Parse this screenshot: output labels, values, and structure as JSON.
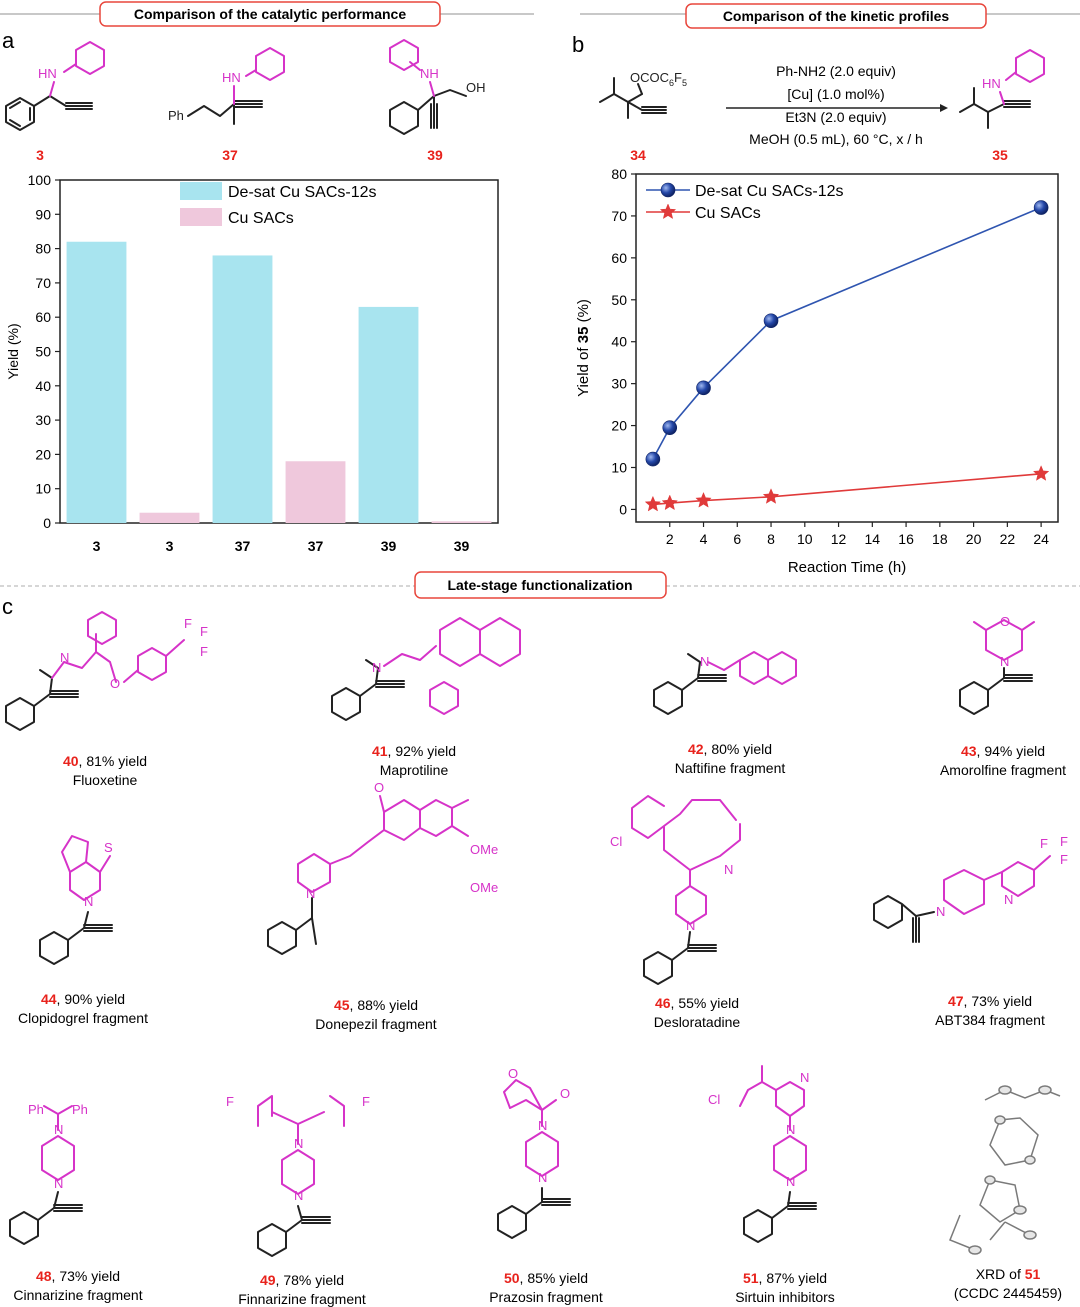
{
  "panel_a": {
    "letter": "a",
    "header": "Comparison of the catalytic performance",
    "compounds": [
      "3",
      "37",
      "39"
    ],
    "ph_label": "Ph",
    "hn_label": "HN",
    "nh_label": "NH",
    "oh_label": "OH"
  },
  "panel_b": {
    "letter": "b",
    "header": "Comparison of the kinetic profiles",
    "reactant_group": "OCOC6F5",
    "reactant_id": "34",
    "product_id": "35",
    "conditions": [
      "Ph-NH2 (2.0 equiv)",
      "[Cu] (1.0 mol%)",
      "Et3N (2.0 equiv)",
      "MeOH (0.5 mL), 60 °C, x / h"
    ]
  },
  "panel_c": {
    "letter": "c",
    "header": "Late-stage functionalization",
    "compounds": [
      {
        "id": "40",
        "yield": ", 81% yield",
        "name": "Fluoxetine"
      },
      {
        "id": "41",
        "yield": ", 92% yield",
        "name": "Maprotiline"
      },
      {
        "id": "42",
        "yield": ", 80% yield",
        "name": "Naftifine fragment"
      },
      {
        "id": "43",
        "yield": ", 94% yield",
        "name": "Amorolfine fragment"
      },
      {
        "id": "44",
        "yield": ", 90% yield",
        "name": "Clopidogrel fragment"
      },
      {
        "id": "45",
        "yield": ", 88% yield",
        "name": "Donepezil fragment"
      },
      {
        "id": "46",
        "yield": ", 55% yield",
        "name": "Desloratadine"
      },
      {
        "id": "47",
        "yield": ", 73% yield",
        "name": "ABT384 fragment"
      },
      {
        "id": "48",
        "yield": ", 73% yield",
        "name": "Cinnarizine fragment"
      },
      {
        "id": "49",
        "yield": ", 78% yield",
        "name": "Finnarizine fragment"
      },
      {
        "id": "50",
        "yield": ", 85% yield",
        "name": "Prazosin fragment"
      },
      {
        "id": "51",
        "yield": ", 87% yield",
        "name": "Sirtuin inhibitors"
      }
    ],
    "xrd": {
      "prefix": "XRD of ",
      "id": "51",
      "ccdc": "(CCDC 2445459)"
    },
    "atom_labels": {
      "F": "F",
      "O": "O",
      "N": "N",
      "S": "S",
      "Cl": "Cl",
      "OMe": "OMe",
      "Ph": "Ph"
    }
  },
  "chart_data": [
    {
      "type": "bar",
      "title": "",
      "xlabel": "",
      "ylabel": "Yield (%)",
      "ylim": [
        0,
        100
      ],
      "yticks": [
        0,
        10,
        20,
        30,
        40,
        50,
        60,
        70,
        80,
        90,
        100
      ],
      "categories": [
        "3",
        "3",
        "37",
        "37",
        "39",
        "39"
      ],
      "series": [
        {
          "name": "De-sat Cu SACs-12s",
          "color": "#a8e4ef",
          "values": [
            82,
            null,
            78,
            null,
            63,
            null
          ]
        },
        {
          "name": "Cu SACs",
          "color": "#efc8dc",
          "values": [
            null,
            3,
            null,
            18,
            null,
            0.5
          ]
        }
      ],
      "legend": "top-center"
    },
    {
      "type": "line",
      "title": "",
      "xlabel": "Reaction Time (h)",
      "ylabel": "Yield of 35 (%)",
      "xlim": [
        0,
        25
      ],
      "ylim": [
        -3,
        80
      ],
      "xticks": [
        2,
        4,
        6,
        8,
        10,
        12,
        14,
        16,
        18,
        20,
        22,
        24
      ],
      "yticks": [
        0,
        10,
        20,
        30,
        40,
        50,
        60,
        70,
        80
      ],
      "series": [
        {
          "name": "De-sat Cu SACs-12s",
          "color": "#2f55b0",
          "marker": "circle",
          "x": [
            1,
            2,
            4,
            8,
            24
          ],
          "y": [
            12,
            19.5,
            29,
            45,
            72
          ]
        },
        {
          "name": "Cu SACs",
          "color": "#e03a3a",
          "marker": "star",
          "x": [
            1,
            2,
            4,
            8,
            24
          ],
          "y": [
            1.2,
            1.5,
            2.1,
            3.0,
            8.5
          ]
        }
      ],
      "legend": "top-left"
    }
  ]
}
